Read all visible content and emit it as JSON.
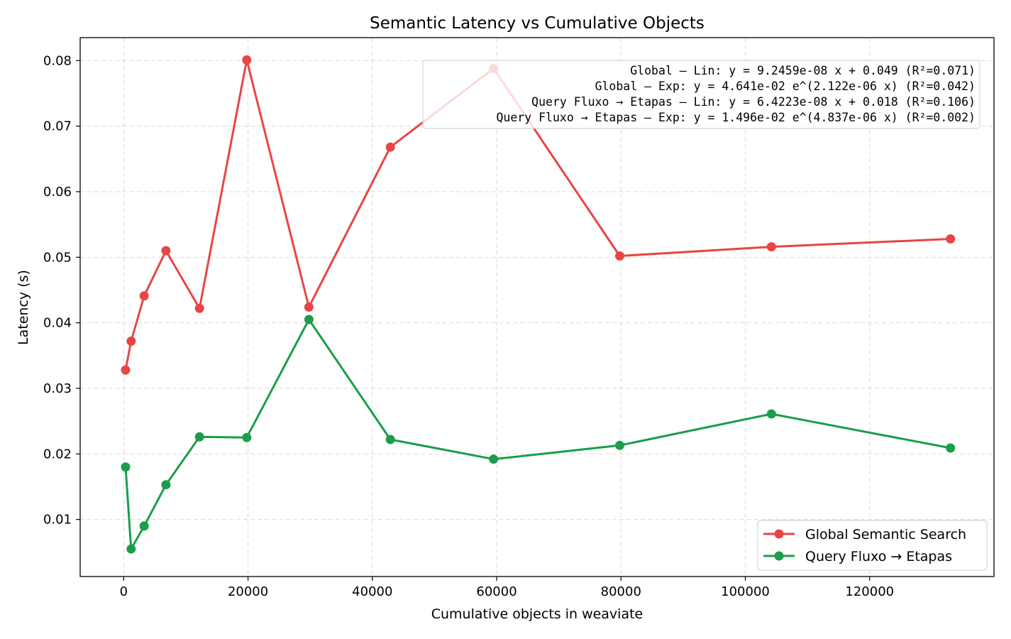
{
  "chart_data": {
    "type": "line",
    "title": "Semantic Latency vs Cumulative Objects",
    "xlabel": "Cumulative objects in weaviate",
    "ylabel": "Latency (s)",
    "xlim": [
      -7000,
      140000
    ],
    "ylim": [
      0.0013,
      0.0835
    ],
    "xticks": [
      0,
      20000,
      40000,
      60000,
      80000,
      100000,
      120000
    ],
    "xtick_labels": [
      "0",
      "20000",
      "40000",
      "60000",
      "80000",
      "100000",
      "120000"
    ],
    "yticks": [
      0.01,
      0.02,
      0.03,
      0.04,
      0.05,
      0.06,
      0.07,
      0.08
    ],
    "ytick_labels": [
      "0.01",
      "0.02",
      "0.03",
      "0.04",
      "0.05",
      "0.06",
      "0.07",
      "0.08"
    ],
    "grid": true,
    "legend_position": "lower-right",
    "series": [
      {
        "name": "Global Semantic Search",
        "color": "#e84545",
        "x": [
          300,
          1200,
          3300,
          6800,
          12200,
          19800,
          29800,
          42900,
          59500,
          79800,
          104200,
          133000
        ],
        "y": [
          0.0328,
          0.0372,
          0.0441,
          0.051,
          0.0422,
          0.0801,
          0.0424,
          0.0668,
          0.0788,
          0.0502,
          0.0516,
          0.0528
        ]
      },
      {
        "name": "Query Fluxo → Etapas",
        "color": "#1a9e4a",
        "x": [
          300,
          1200,
          3300,
          6800,
          12200,
          19800,
          29800,
          42900,
          59500,
          79800,
          104200,
          133000
        ],
        "y": [
          0.018,
          0.0055,
          0.009,
          0.0153,
          0.0226,
          0.0225,
          0.0405,
          0.0222,
          0.0192,
          0.0213,
          0.0261,
          0.0209
        ]
      }
    ],
    "annotations": [
      "Global – Lin: y = 9.2459e-08 x + 0.049  (R²=0.071)",
      "Global – Exp: y = 4.641e-02 e^(2.122e-06 x)  (R²=0.042)",
      "Query Fluxo → Etapas – Lin: y = 6.4223e-08 x + 0.018  (R²=0.106)",
      "Query Fluxo → Etapas – Exp: y = 1.496e-02 e^(4.837e-06 x)  (R²=0.002)"
    ]
  }
}
